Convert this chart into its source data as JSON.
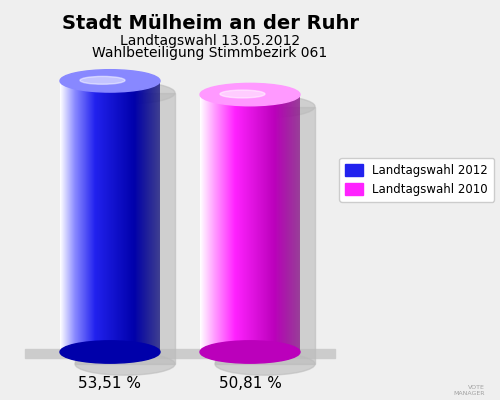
{
  "title": "Stadt Mülheim an der Ruhr",
  "subtitle_line1": "Landtagswahl 13.05.2012",
  "subtitle_line2": "Wahlbeteiligung Stimmbezirk 061",
  "values": [
    53.51,
    50.81
  ],
  "labels": [
    "53,51 %",
    "50,81 %"
  ],
  "bar_colors_main": [
    "#2222ee",
    "#ff22ff"
  ],
  "bar_colors_dark": [
    "#0000aa",
    "#bb00bb"
  ],
  "bar_colors_light": [
    "#8888ff",
    "#ff99ff"
  ],
  "legend_labels": [
    "Landtagswahl 2012",
    "Landtagswahl 2010"
  ],
  "background_color": "#efefef",
  "title_fontsize": 14,
  "subtitle_fontsize": 10,
  "label_fontsize": 11
}
